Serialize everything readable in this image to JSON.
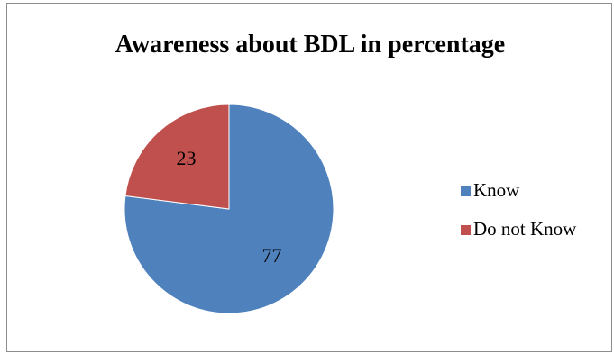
{
  "chart_data": {
    "type": "pie",
    "title": "Awareness about BDL in percentage",
    "series": [
      {
        "name": "Know",
        "value": 77,
        "color": "#4f81bd",
        "label": "77"
      },
      {
        "name": "Do not Know",
        "value": 23,
        "color": "#c0504d",
        "label": "23"
      }
    ],
    "start_angle_deg": 0,
    "direction": "clockwise",
    "legend_position": "right"
  }
}
